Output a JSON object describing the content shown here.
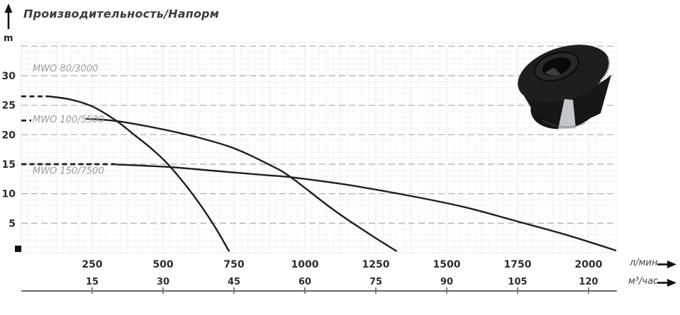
{
  "title": "Производительность/Напорм",
  "y_unit": "m",
  "flow_units": {
    "per_minute": "л/мин",
    "per_hour": "м³/час"
  },
  "chart_data": {
    "type": "line",
    "title": "Производительность/Напорм",
    "ylabel": "m",
    "xlabel_row1": "л/мин",
    "xlabel_row2": "м³/час",
    "xlim": [
      0,
      2100
    ],
    "ylim": [
      0,
      35.6
    ],
    "grid": true,
    "x_ticks_lmin": [
      250,
      500,
      750,
      1000,
      1250,
      1500,
      1750,
      2000
    ],
    "x_ticks_m3h": [
      15,
      30,
      45,
      60,
      75,
      90,
      105,
      120
    ],
    "y_ticks": [
      5,
      10,
      15,
      20,
      25,
      30
    ],
    "series": [
      {
        "name": "MWO 80/3000",
        "label_pos": [
          40,
          30.7
        ],
        "dash": [
          [
            0,
            26.5
          ],
          [
            95,
            26.5
          ]
        ],
        "points": [
          [
            95,
            26.5
          ],
          [
            170,
            26.0
          ],
          [
            250,
            24.8
          ],
          [
            337,
            22.3
          ],
          [
            400,
            19.9
          ],
          [
            460,
            17.6
          ],
          [
            525,
            14.6
          ],
          [
            612,
            9.4
          ],
          [
            680,
            4.6
          ],
          [
            732,
            0.3
          ]
        ]
      },
      {
        "name": "MWO 100/5500",
        "label_pos": [
          40,
          22.05
        ],
        "dash": [
          [
            0,
            22.4
          ],
          [
            35,
            22.4
          ]
        ],
        "points": [
          [
            230,
            22.7
          ],
          [
            337,
            22.3
          ],
          [
            500,
            20.9
          ],
          [
            625,
            19.5
          ],
          [
            750,
            17.7
          ],
          [
            875,
            14.9
          ],
          [
            950,
            12.8
          ],
          [
            1100,
            7.3
          ],
          [
            1220,
            3.4
          ],
          [
            1322,
            0.3
          ]
        ]
      },
      {
        "name": "MWO 150/7500",
        "label_pos": [
          40,
          13.35
        ],
        "dash": [
          [
            0,
            15.0
          ],
          [
            337,
            15.0
          ]
        ],
        "points": [
          [
            337,
            14.95
          ],
          [
            525,
            14.5
          ],
          [
            700,
            13.8
          ],
          [
            875,
            13.1
          ],
          [
            950,
            12.8
          ],
          [
            1150,
            11.5
          ],
          [
            1375,
            9.6
          ],
          [
            1565,
            7.7
          ],
          [
            1750,
            5.3
          ],
          [
            1930,
            2.9
          ],
          [
            2095,
            0.4
          ]
        ]
      }
    ]
  }
}
